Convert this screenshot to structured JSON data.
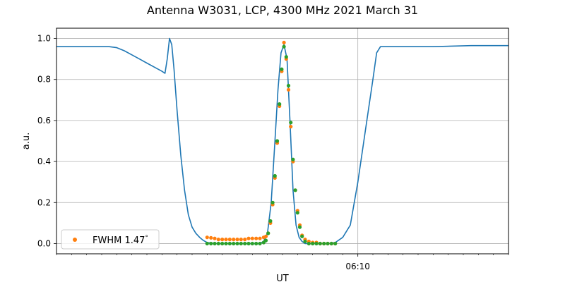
{
  "chart_data": {
    "type": "line",
    "title": "Antenna W3031, LCP, 4300 MHz 2021 March 31",
    "xlabel": "UT",
    "ylabel": "a.u.",
    "xlim": [
      0,
      60
    ],
    "ylim": [
      -0.05,
      1.05
    ],
    "x_major_ticks": [
      {
        "x": 40,
        "label": "06:10"
      }
    ],
    "x_minor_step": 2,
    "y_ticks": [
      0.0,
      0.2,
      0.4,
      0.6,
      0.8,
      1.0
    ],
    "y_tick_labels": [
      "0.0",
      "0.2",
      "0.4",
      "0.6",
      "0.8",
      "1.0"
    ],
    "grid": true,
    "legend": {
      "position": "lower-left",
      "entries": [
        {
          "label": "FWHM 1.47$^\\circ$",
          "marker": "orange-dot"
        }
      ]
    },
    "colors": {
      "line": "#1f77b4",
      "orange": "#ff7f0e",
      "green": "#2ca02c",
      "grid": "#b0b0b0"
    },
    "series": [
      {
        "kind": "line",
        "x": [
          0,
          2,
          4,
          6,
          7,
          8,
          9,
          10,
          11,
          12,
          13,
          14,
          14.4,
          14.7,
          15,
          15.3,
          15.6,
          16,
          16.5,
          17,
          17.5,
          18,
          18.5,
          19,
          19.5,
          20,
          21,
          22,
          23,
          24,
          25,
          26,
          27,
          27.5,
          28,
          28.5,
          29,
          29.4,
          29.8,
          30.2,
          30.6,
          31,
          31.4,
          31.8,
          32.2,
          32.6,
          33,
          33.5,
          34,
          35,
          36,
          37,
          38,
          39,
          40,
          41,
          42,
          42.5,
          43,
          44,
          46,
          50,
          55,
          60
        ],
        "y": [
          0.96,
          0.96,
          0.96,
          0.96,
          0.96,
          0.955,
          0.94,
          0.92,
          0.9,
          0.88,
          0.86,
          0.84,
          0.83,
          0.9,
          1.0,
          0.97,
          0.85,
          0.65,
          0.43,
          0.26,
          0.14,
          0.08,
          0.05,
          0.03,
          0.015,
          0.005,
          0.0,
          0.0,
          0.0,
          0.0,
          0.0,
          0.0,
          0.0,
          0.01,
          0.05,
          0.2,
          0.5,
          0.75,
          0.93,
          0.97,
          0.9,
          0.59,
          0.26,
          0.09,
          0.03,
          0.01,
          0.0,
          0.0,
          0.0,
          0.0,
          0.0,
          0.005,
          0.03,
          0.09,
          0.3,
          0.55,
          0.8,
          0.93,
          0.96,
          0.96,
          0.96,
          0.96,
          0.965,
          0.965
        ]
      },
      {
        "kind": "scatter",
        "name": "FWHM 1.47$^\\circ$",
        "x": [
          20,
          20.5,
          21,
          21.5,
          22,
          22.5,
          23,
          23.5,
          24,
          24.5,
          25,
          25.5,
          26,
          26.5,
          27,
          27.5,
          27.8,
          28.1,
          28.4,
          28.7,
          29,
          29.3,
          29.6,
          29.9,
          30.2,
          30.5,
          30.8,
          31.1,
          31.4,
          31.7,
          32,
          32.3,
          32.6,
          33,
          33.5,
          34,
          34.5,
          35,
          35.5,
          36,
          36.5,
          37
        ],
        "y": [
          0.03,
          0.028,
          0.025,
          0.02,
          0.02,
          0.02,
          0.02,
          0.02,
          0.02,
          0.02,
          0.02,
          0.025,
          0.025,
          0.025,
          0.025,
          0.03,
          0.035,
          0.05,
          0.1,
          0.19,
          0.32,
          0.49,
          0.67,
          0.84,
          0.98,
          0.9,
          0.75,
          0.57,
          0.4,
          0.26,
          0.16,
          0.09,
          0.04,
          0.02,
          0.01,
          0.005,
          0.005,
          0.0,
          0.0,
          0.0,
          0.0,
          0.0
        ]
      },
      {
        "kind": "scatter",
        "x": [
          20,
          20.5,
          21,
          21.5,
          22,
          22.5,
          23,
          23.5,
          24,
          24.5,
          25,
          25.5,
          26,
          26.5,
          27,
          27.5,
          27.8,
          28.1,
          28.4,
          28.7,
          29,
          29.3,
          29.6,
          29.9,
          30.2,
          30.5,
          30.8,
          31.1,
          31.4,
          31.7,
          32,
          32.3,
          32.6,
          33,
          33.5,
          34,
          34.5,
          35,
          35.5,
          36,
          36.5,
          37
        ],
        "y": [
          0.0,
          0.0,
          0.0,
          0.0,
          0.0,
          0.0,
          0.0,
          0.0,
          0.0,
          0.0,
          0.0,
          0.0,
          0.0,
          0.0,
          0.0,
          0.005,
          0.015,
          0.05,
          0.11,
          0.2,
          0.33,
          0.5,
          0.68,
          0.85,
          0.96,
          0.91,
          0.77,
          0.59,
          0.41,
          0.26,
          0.15,
          0.08,
          0.035,
          0.01,
          0.0,
          0.0,
          0.0,
          0.0,
          0.0,
          0.0,
          0.0,
          0.0
        ]
      }
    ]
  }
}
